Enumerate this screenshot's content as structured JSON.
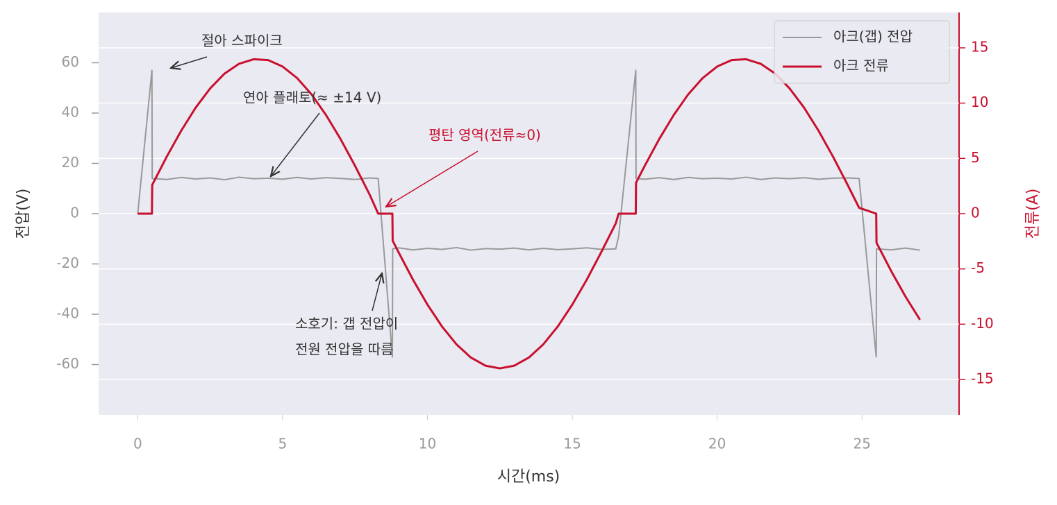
{
  "chart_data": {
    "type": "line",
    "xlabel": "시간(ms)",
    "ylabel": "전압(V)",
    "y2label": "전류(A)",
    "x": [
      0,
      0.49,
      0.5,
      1,
      1.5,
      2,
      2.5,
      3,
      3.5,
      4,
      4.5,
      5,
      5.5,
      6,
      6.5,
      7,
      7.5,
      8,
      8.3,
      8.79,
      8.8,
      9,
      9.5,
      10,
      10.5,
      11,
      11.5,
      12,
      12.5,
      13,
      13.5,
      14,
      14.5,
      15,
      15.5,
      16,
      16.5,
      16.6,
      17.19,
      17.2,
      17.5,
      18,
      18.5,
      19,
      19.5,
      20,
      20.5,
      21,
      21.5,
      22,
      22.5,
      23,
      23.5,
      24,
      24.5,
      24.9,
      25.49,
      25.5,
      26,
      26.5,
      27
    ],
    "series": [
      {
        "name": "아크(갭) 전압",
        "color": "#999999",
        "axis": "y",
        "values": [
          0,
          57,
          14,
          13.6,
          14.4,
          13.8,
          14.2,
          13.5,
          14.5,
          13.9,
          14.1,
          13.7,
          14.4,
          13.8,
          14.3,
          14.0,
          13.6,
          14.2,
          14,
          -57,
          -14,
          -13.6,
          -14.4,
          -13.8,
          -14.2,
          -13.5,
          -14.5,
          -13.9,
          -14.1,
          -13.7,
          -14.4,
          -13.8,
          -14.3,
          -14.0,
          -13.6,
          -14.2,
          -14,
          -9,
          57,
          14,
          13.7,
          14.3,
          13.6,
          14.4,
          13.9,
          14.1,
          13.8,
          14.5,
          13.6,
          14.2,
          13.9,
          14.3,
          13.7,
          14.1,
          14.2,
          14,
          -57,
          -14,
          -14.4,
          -13.7,
          -14.5
        ]
      },
      {
        "name": "아크 전류",
        "color": "#c8102e",
        "axis": "y2",
        "values": [
          0,
          0,
          2.6,
          5.15,
          7.5,
          9.59,
          11.33,
          12.68,
          13.56,
          13.97,
          13.89,
          13.31,
          12.27,
          10.79,
          8.92,
          6.75,
          4.33,
          1.75,
          0,
          0,
          -2.45,
          -3.48,
          -5.97,
          -8.23,
          -10.2,
          -11.82,
          -13.02,
          -13.75,
          -14.0,
          -13.75,
          -13.02,
          -11.82,
          -10.2,
          -8.23,
          -5.97,
          -3.48,
          -0.88,
          0,
          0,
          2.8,
          4.33,
          6.75,
          8.92,
          10.79,
          12.27,
          13.31,
          13.89,
          13.97,
          13.56,
          12.68,
          11.33,
          9.59,
          7.5,
          5.15,
          2.62,
          0.53,
          0,
          -2.63,
          -5.16,
          -7.5,
          -9.6
        ]
      }
    ],
    "xlim": [
      -1.35,
      28.35
    ],
    "xticks": [
      0,
      5,
      10,
      15,
      20,
      25
    ],
    "ylim": [
      -80,
      80
    ],
    "yticks": [
      -60,
      -40,
      -20,
      0,
      20,
      40,
      60
    ],
    "y2lim": [
      -18.2,
      18.2
    ],
    "y2ticks": [
      -15,
      -10,
      -5,
      0,
      5,
      10,
      15
    ],
    "grid": true,
    "legend": "upper right",
    "annotations": [
      {
        "text": "절아 스파이크"
      },
      {
        "text": "연아 플래토(≈ ±14 V)"
      },
      {
        "text": "평탄 영역(전류≈0)"
      },
      {
        "lines": [
          "소호기: 갭 전압이",
          "전원 전압을 따름"
        ]
      }
    ]
  }
}
